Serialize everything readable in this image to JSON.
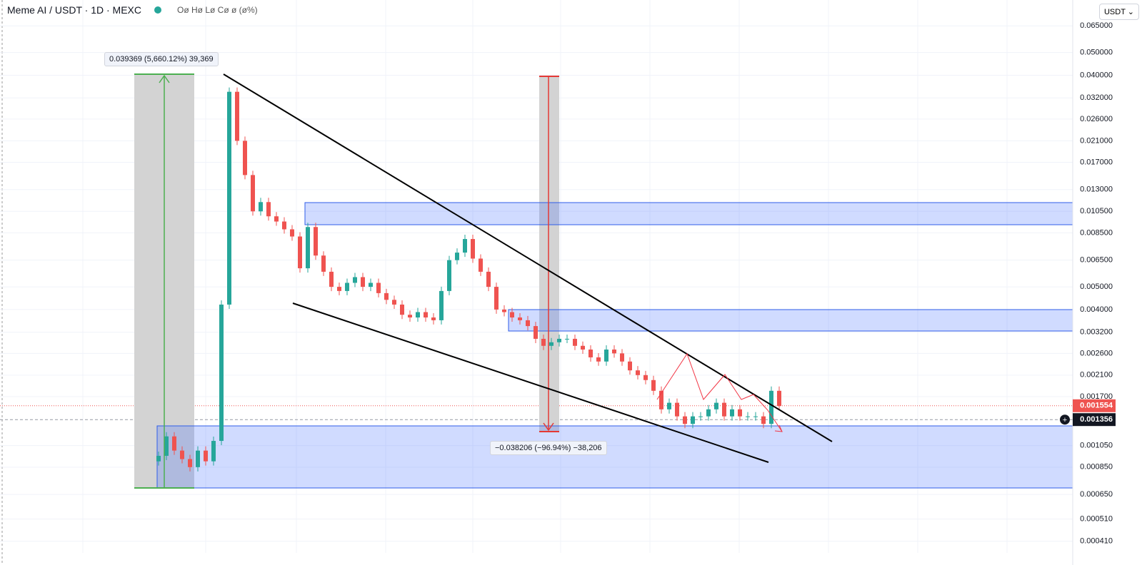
{
  "chart_data": {
    "type": "candlestick",
    "title": "Meme AI / USDT · 1D · MEXC",
    "ohlc_status": "Oø Hø Lø Cø ø (ø%)",
    "currency": "USDT",
    "measure_up": "0.039369 (5,660.12%) 39,369",
    "measure_down": "−0.038206 (−96.94%) −38,206",
    "log_scale": true,
    "up_color": "#26a69a",
    "down_color": "#ef5350",
    "open": 0.0009,
    "close": [
      0.00095,
      0.00115,
      0.001,
      0.00092,
      0.00085,
      0.001,
      0.0009,
      0.0011,
      0.0042,
      0.034,
      0.021,
      0.015,
      0.0105,
      0.0115,
      0.01,
      0.0095,
      0.0088,
      0.0082,
      0.006,
      0.009,
      0.0068,
      0.0058,
      0.005,
      0.0048,
      0.0052,
      0.0055,
      0.005,
      0.0052,
      0.0047,
      0.0044,
      0.0042,
      0.0038,
      0.0037,
      0.0039,
      0.0037,
      0.0036,
      0.0048,
      0.0065,
      0.007,
      0.008,
      0.0066,
      0.0058,
      0.005,
      0.004,
      0.0039,
      0.0037,
      0.0036,
      0.0034,
      0.003,
      0.0028,
      0.0029,
      0.003,
      0.003,
      0.0028,
      0.0027,
      0.0025,
      0.0024,
      0.0027,
      0.0026,
      0.0024,
      0.0022,
      0.0021,
      0.002,
      0.0018,
      0.0015,
      0.0016,
      0.0014,
      0.0013,
      0.0014,
      0.0014,
      0.0015,
      0.0016,
      0.0014,
      0.0015,
      0.0014,
      0.0014,
      0.0014,
      0.0013,
      0.0018,
      0.00155
    ],
    "ylim": [
      0.000366,
      0.0838
    ],
    "yticks": [
      {
        "value": 0.065,
        "label": "0.065000"
      },
      {
        "value": 0.05,
        "label": "0.050000"
      },
      {
        "value": 0.04,
        "label": "0.040000"
      },
      {
        "value": 0.032,
        "label": "0.032000"
      },
      {
        "value": 0.026,
        "label": "0.026000"
      },
      {
        "value": 0.021,
        "label": "0.021000"
      },
      {
        "value": 0.017,
        "label": "0.017000"
      },
      {
        "value": 0.013,
        "label": "0.013000"
      },
      {
        "value": 0.0105,
        "label": "0.010500"
      },
      {
        "value": 0.0085,
        "label": "0.008500"
      },
      {
        "value": 0.0065,
        "label": "0.006500"
      },
      {
        "value": 0.005,
        "label": "0.005000"
      },
      {
        "value": 0.004,
        "label": "0.004000"
      },
      {
        "value": 0.0032,
        "label": "0.003200"
      },
      {
        "value": 0.0026,
        "label": "0.002600"
      },
      {
        "value": 0.0021,
        "label": "0.002100"
      },
      {
        "value": 0.0017,
        "label": "0.001700"
      },
      {
        "value": 0.00105,
        "label": "0.001050"
      },
      {
        "value": 0.00085,
        "label": "0.000850"
      },
      {
        "value": 0.00065,
        "label": "0.000650"
      },
      {
        "value": 0.00051,
        "label": "0.000510"
      },
      {
        "value": 0.00041,
        "label": "0.000410"
      }
    ],
    "last_price": {
      "value": 0.001554,
      "label": "0.001554"
    },
    "crosshair_price": {
      "value": 0.001356,
      "label": "0.001356"
    },
    "grid": true
  }
}
